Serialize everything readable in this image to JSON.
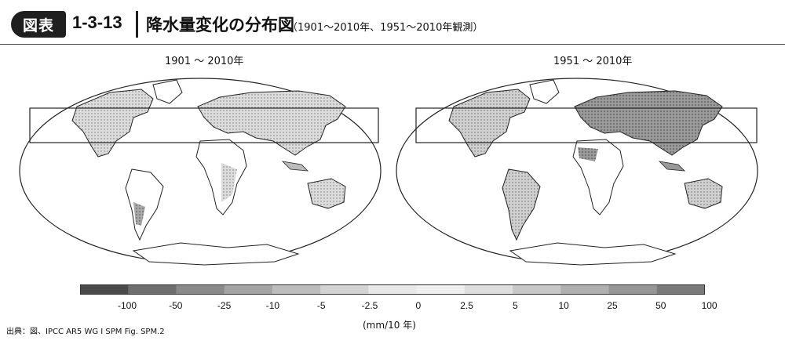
{
  "header": {
    "badge": "図表",
    "number": "1-3-13",
    "title": "降水量変化の分布図",
    "subtitle": "（1901〜2010年、1951〜2010年観測）"
  },
  "panels": [
    {
      "title": "1901 〜 2010年"
    },
    {
      "title": "1951 〜 2010年"
    }
  ],
  "colorbar": {
    "labels": [
      "-100",
      "-50",
      "-25",
      "-10",
      "-5",
      "-2.5",
      "0",
      "2.5",
      "5",
      "10",
      "25",
      "50",
      "100"
    ],
    "units": "(mm/10 年)",
    "colors": [
      "#4a4a4a",
      "#6e6e6e",
      "#8a8a8a",
      "#a4a4a4",
      "#bdbdbd",
      "#d3d3d3",
      "#e8e8e8",
      "#efefef",
      "#dedede",
      "#c8c8c8",
      "#b0b0b0",
      "#969696",
      "#7a7a7a"
    ]
  },
  "source": "出典：図、IPCC AR5 WG Ⅰ SPM Fig. SPM.2"
}
